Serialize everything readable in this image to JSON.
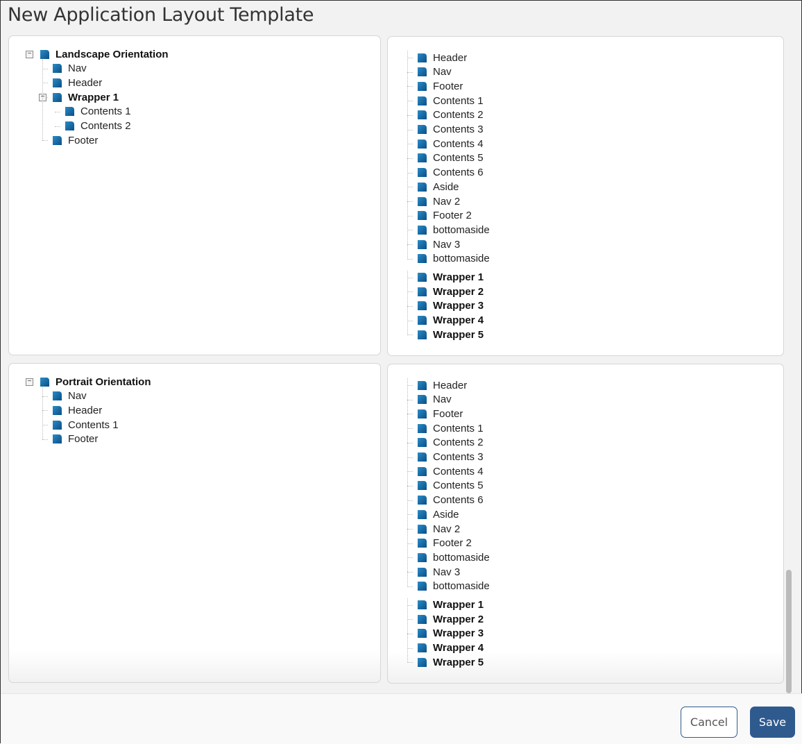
{
  "title": "New Application Layout Template",
  "landscape": {
    "root": "Landscape Orientation",
    "items": [
      {
        "label": "Nav",
        "level": 1
      },
      {
        "label": "Header",
        "level": 1
      },
      {
        "label": "Wrapper 1",
        "level": 1,
        "bold": true,
        "expanded": true
      },
      {
        "label": "Contents 1",
        "level": 2
      },
      {
        "label": "Contents 2",
        "level": 2
      },
      {
        "label": "Footer",
        "level": 1
      }
    ]
  },
  "portrait": {
    "root": "Portrait Orientation",
    "items": [
      {
        "label": "Nav",
        "level": 1
      },
      {
        "label": "Header",
        "level": 1
      },
      {
        "label": "Contents 1",
        "level": 1
      },
      {
        "label": "Footer",
        "level": 1
      }
    ]
  },
  "palette_top": {
    "components": [
      "Header",
      "Nav",
      "Footer",
      "Contents 1",
      "Contents 2",
      "Contents 3",
      "Contents 4",
      "Contents 5",
      "Contents 6",
      "Aside",
      "Nav 2",
      "Footer 2",
      "bottomaside",
      "Nav 3",
      "bottomaside"
    ],
    "wrappers": [
      "Wrapper 1",
      "Wrapper 2",
      "Wrapper 3",
      "Wrapper 4",
      "Wrapper 5"
    ]
  },
  "palette_bottom": {
    "components": [
      "Header",
      "Nav",
      "Footer",
      "Contents 1",
      "Contents 2",
      "Contents 3",
      "Contents 4",
      "Contents 5",
      "Contents 6",
      "Aside",
      "Nav 2",
      "Footer 2",
      "bottomaside",
      "Nav 3",
      "bottomaside"
    ],
    "wrappers": [
      "Wrapper 1",
      "Wrapper 2",
      "Wrapper 3",
      "Wrapper 4",
      "Wrapper 5"
    ]
  },
  "buttons": {
    "cancel": "Cancel",
    "save": "Save"
  },
  "colors": {
    "accent": "#2f5a8e",
    "node_icon": "#1369a8"
  }
}
